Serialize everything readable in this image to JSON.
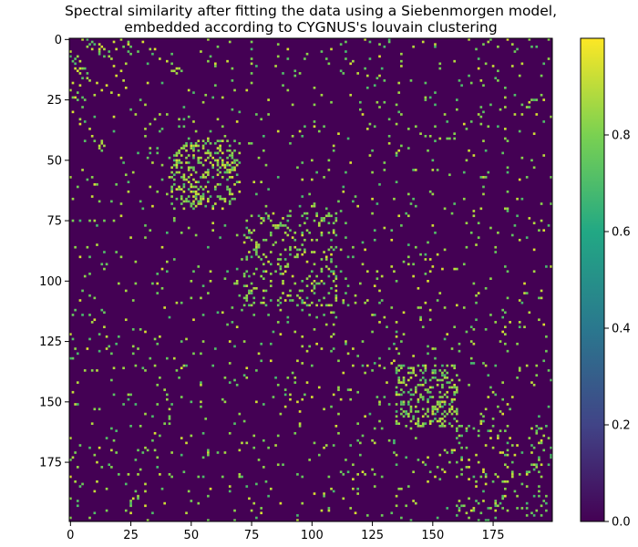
{
  "chart_data": {
    "type": "heatmap",
    "title": "Spectral similarity after fitting the data using a Siebenmorgen model,\nembedded according to CYGNUS's louvain clustering",
    "title_lines": [
      "Spectral similarity after fitting the data using a Siebenmorgen model,",
      "embedded according to CYGNUS's louvain clustering"
    ],
    "xlabel": "",
    "ylabel": "",
    "matrix_size": 200,
    "xlim": [
      0,
      199
    ],
    "ylim": [
      199,
      0
    ],
    "x_ticks": [
      0,
      25,
      50,
      75,
      100,
      125,
      150,
      175
    ],
    "y_ticks": [
      0,
      25,
      50,
      75,
      100,
      125,
      150,
      175
    ],
    "colormap": "viridis",
    "background_value": 0.0,
    "background_color": "#440154",
    "value_range": [
      0.0,
      1.0
    ],
    "colorbar": {
      "ticks": [
        0.0,
        0.2,
        0.4,
        0.6,
        0.8
      ],
      "tick_labels": [
        "0.0",
        "0.2",
        "0.4",
        "0.6",
        "0.8"
      ],
      "colors": [
        "#440154",
        "#414487",
        "#2a788e",
        "#22a884",
        "#7ad151",
        "#fde725"
      ]
    },
    "grid": false,
    "legend": "none",
    "description_of_values": "Sparse symmetric similarity matrix; cells mostly 0.0 with scattered entries of about 0.7-0.95, denser clusters near the diagonal blocks.",
    "clusters": [
      {
        "rows": [
          0,
          25
        ],
        "cols": [
          0,
          25
        ],
        "density": 0.1
      },
      {
        "rows": [
          42,
          70
        ],
        "cols": [
          42,
          70
        ],
        "density": 0.3
      },
      {
        "rows": [
          72,
          110
        ],
        "cols": [
          72,
          110
        ],
        "density": 0.16
      },
      {
        "rows": [
          100,
          132
        ],
        "cols": [
          100,
          132
        ],
        "density": 0.1
      },
      {
        "rows": [
          135,
          160
        ],
        "cols": [
          135,
          160
        ],
        "density": 0.25
      },
      {
        "rows": [
          160,
          199
        ],
        "cols": [
          160,
          199
        ],
        "density": 0.1
      }
    ],
    "off_block_density": 0.035,
    "hit_value_range": [
      0.68,
      0.95
    ],
    "random_seed": 7
  }
}
